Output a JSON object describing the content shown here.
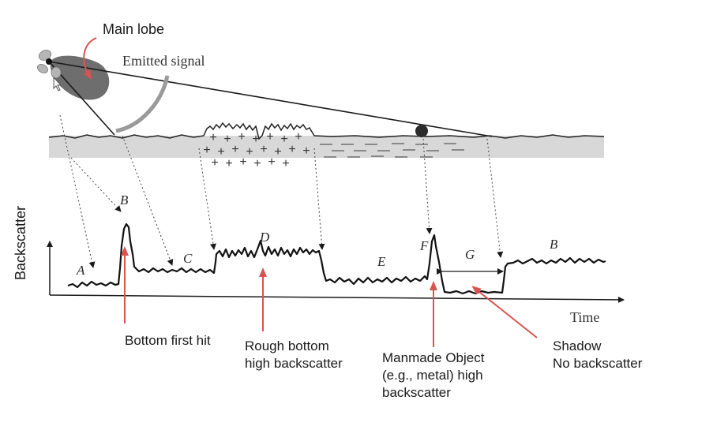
{
  "figure": {
    "y_axis_label": "Backscatter",
    "x_axis_label": "Time",
    "emitted_signal_label": "Emitted signal",
    "main_lobe_label": "Main lobe",
    "segments": [
      "A",
      "B",
      "C",
      "D",
      "E",
      "F",
      "G",
      "B"
    ]
  },
  "annotations": {
    "bottom_first_hit": "Bottom first hit",
    "rough_bottom_line1": "Rough bottom",
    "rough_bottom_line2": "high backscatter",
    "manmade_line1": "Manmade Object",
    "manmade_line2": "(e.g., metal) high",
    "manmade_line3": "backscatter",
    "shadow_line1": "Shadow",
    "shadow_line2": "No backscatter"
  },
  "colors": {
    "annotation_arrow": "#d9534f",
    "main_lobe_fill": "#6e6e6e",
    "beam_arc": "#9a9a9a",
    "seabed_band": "#d8d8d8",
    "object": "#2b2b2b"
  },
  "icons": {
    "sonar_source": "sonar-transducer-icon",
    "cursor": "pointer-cursor-icon"
  }
}
